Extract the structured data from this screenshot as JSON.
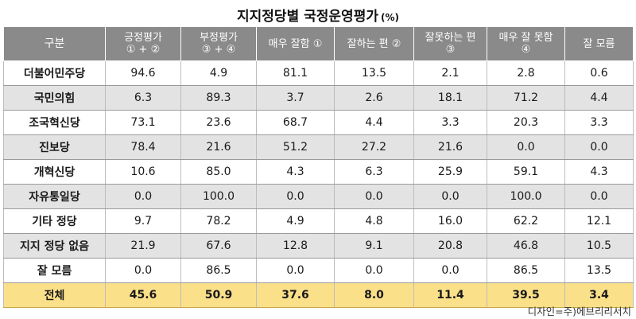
{
  "title": "지지정당별 국정운영평가",
  "unit": "(%)",
  "credit": "디자인=주)에브리리서치",
  "colors": {
    "header": "#8a8a8a",
    "shade": "#e3e3e3",
    "total": "#fbe08a"
  },
  "chart_data": {
    "type": "table",
    "columns": [
      "구분",
      "긍정평가\n① + ②",
      "부정평가\n③ + ④",
      "매우 잘함 ①",
      "잘하는 편 ②",
      "잘못하는 편\n③",
      "매우 잘 못함\n④",
      "잘 모름"
    ],
    "rows": [
      {
        "label": "더불어민주당",
        "values": [
          "94.6",
          "4.9",
          "81.1",
          "13.5",
          "2.1",
          "2.8",
          "0.6"
        ]
      },
      {
        "label": "국민의힘",
        "values": [
          "6.3",
          "89.3",
          "3.7",
          "2.6",
          "18.1",
          "71.2",
          "4.4"
        ]
      },
      {
        "label": "조국혁신당",
        "values": [
          "73.1",
          "23.6",
          "68.7",
          "4.4",
          "3.3",
          "20.3",
          "3.3"
        ]
      },
      {
        "label": "진보당",
        "values": [
          "78.4",
          "21.6",
          "51.2",
          "27.2",
          "21.6",
          "0.0",
          "0.0"
        ]
      },
      {
        "label": "개혁신당",
        "values": [
          "10.6",
          "85.0",
          "4.3",
          "6.3",
          "25.9",
          "59.1",
          "4.3"
        ]
      },
      {
        "label": "자유통일당",
        "values": [
          "0.0",
          "100.0",
          "0.0",
          "0.0",
          "0.0",
          "100.0",
          "0.0"
        ]
      },
      {
        "label": "기타 정당",
        "values": [
          "9.7",
          "78.2",
          "4.9",
          "4.8",
          "16.0",
          "62.2",
          "12.1"
        ]
      },
      {
        "label": "지지 정당 없음",
        "values": [
          "21.9",
          "67.6",
          "12.8",
          "9.1",
          "20.8",
          "46.8",
          "10.5"
        ]
      },
      {
        "label": "잘 모름",
        "values": [
          "0.0",
          "86.5",
          "0.0",
          "0.0",
          "0.0",
          "86.5",
          "13.5"
        ]
      }
    ],
    "total": {
      "label": "전체",
      "values": [
        "45.6",
        "50.9",
        "37.6",
        "8.0",
        "11.4",
        "39.5",
        "3.4"
      ]
    }
  }
}
